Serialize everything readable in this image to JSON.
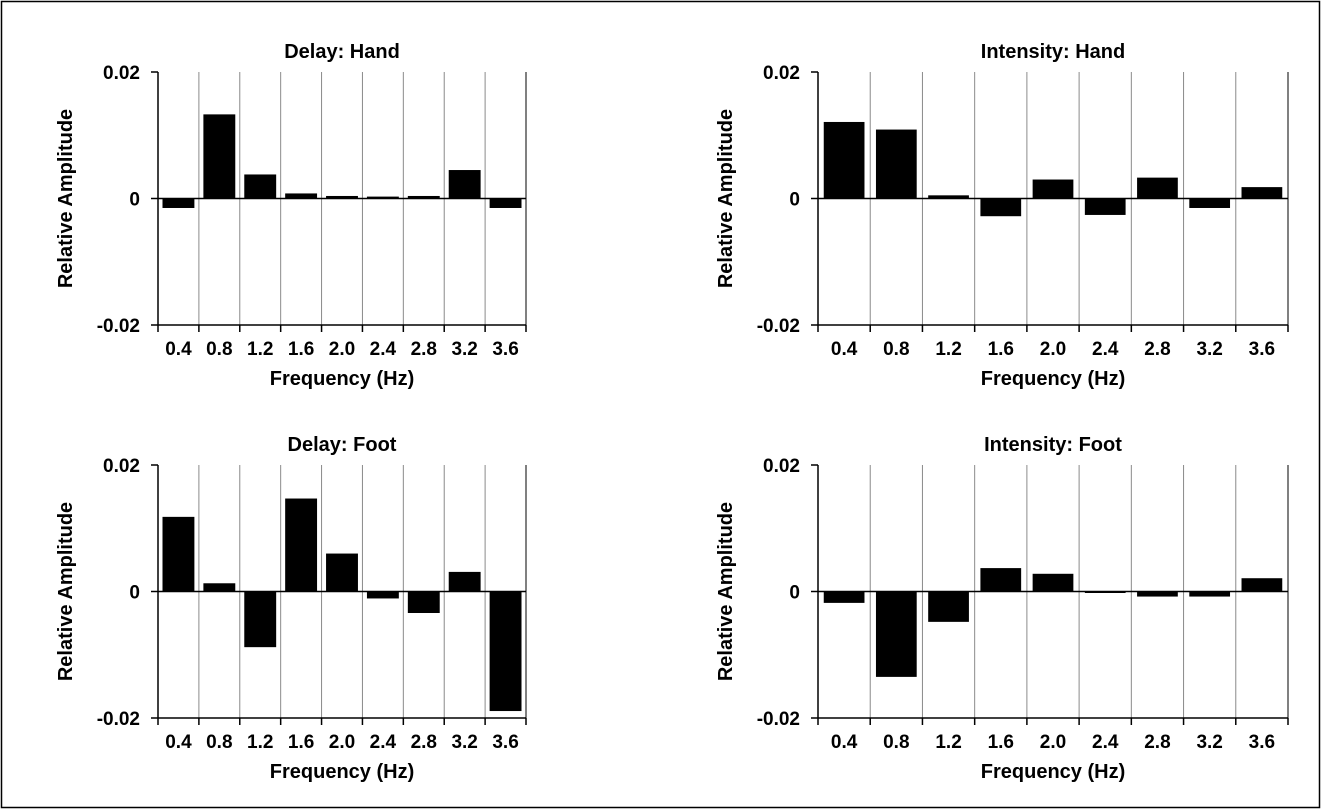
{
  "style": {
    "bar_color": "#000000",
    "frame_color": "#000000",
    "grid_color": "#8a8a8a",
    "background": "#ffffff"
  },
  "chart_data": [
    {
      "id": "delay-hand",
      "type": "bar",
      "title": "Delay: Hand",
      "xlabel": "Frequency (Hz)",
      "ylabel": "Relative Amplitude",
      "categories": [
        "0.4",
        "0.8",
        "1.2",
        "1.6",
        "2.0",
        "2.4",
        "2.8",
        "3.2",
        "3.6"
      ],
      "values": [
        -0.0015,
        0.0133,
        0.0038,
        0.0008,
        0.0004,
        0.0003,
        0.0004,
        0.0045,
        -0.0015
      ],
      "ylim": [
        -0.02,
        0.02
      ],
      "yticks": [
        "0.02",
        "0",
        "-0.02"
      ],
      "grid": true
    },
    {
      "id": "intensity-hand",
      "type": "bar",
      "title": "Intensity: Hand",
      "xlabel": "Frequency (Hz)",
      "ylabel": "Relative Amplitude",
      "categories": [
        "0.4",
        "0.8",
        "1.2",
        "1.6",
        "2.0",
        "2.4",
        "2.8",
        "3.2",
        "3.6"
      ],
      "values": [
        0.0121,
        0.0109,
        0.0005,
        -0.0028,
        0.003,
        -0.0026,
        0.0033,
        -0.0015,
        0.0018
      ],
      "ylim": [
        -0.02,
        0.02
      ],
      "yticks": [
        "0.02",
        "0",
        "-0.02"
      ],
      "grid": true
    },
    {
      "id": "delay-foot",
      "type": "bar",
      "title": "Delay: Foot",
      "xlabel": "Frequency (Hz)",
      "ylabel": "Relative Amplitude",
      "categories": [
        "0.4",
        "0.8",
        "1.2",
        "1.6",
        "2.0",
        "2.4",
        "2.8",
        "3.2",
        "3.6"
      ],
      "values": [
        0.0118,
        0.0013,
        -0.0088,
        0.0147,
        0.006,
        -0.0011,
        -0.0034,
        0.0031,
        -0.0189
      ],
      "ylim": [
        -0.02,
        0.02
      ],
      "yticks": [
        "0.02",
        "0",
        "-0.02"
      ],
      "grid": true
    },
    {
      "id": "intensity-foot",
      "type": "bar",
      "title": "Intensity: Foot",
      "xlabel": "Frequency (Hz)",
      "ylabel": "Relative Amplitude",
      "categories": [
        "0.4",
        "0.8",
        "1.2",
        "1.6",
        "2.0",
        "2.4",
        "2.8",
        "3.2",
        "3.6"
      ],
      "values": [
        -0.0018,
        -0.0135,
        -0.0048,
        0.0037,
        0.0028,
        0.0,
        -0.0008,
        -0.0008,
        0.0021
      ],
      "ylim": [
        -0.02,
        0.02
      ],
      "yticks": [
        "0.02",
        "0",
        "-0.02"
      ],
      "grid": true
    }
  ]
}
